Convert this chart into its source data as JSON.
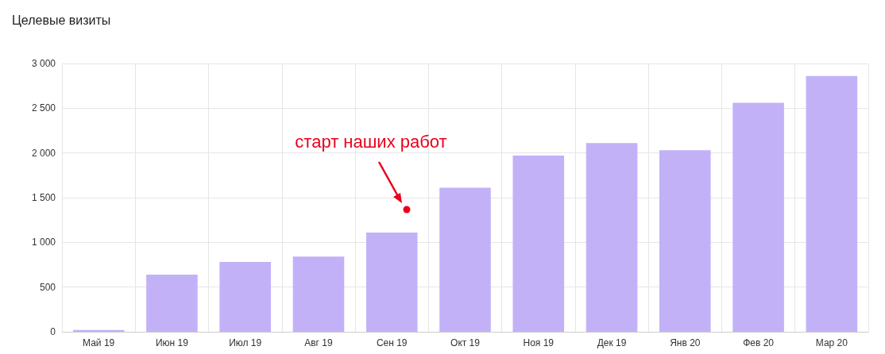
{
  "chart_data": {
    "type": "bar",
    "title": "Целевые визиты",
    "categories": [
      "Май 19",
      "Июн 19",
      "Июл 19",
      "Авг 19",
      "Сен 19",
      "Окт 19",
      "Ноя 19",
      "Дек 19",
      "Янв 20",
      "Фев 20",
      "Мар 20"
    ],
    "values": [
      20,
      640,
      780,
      840,
      1110,
      1610,
      1970,
      2110,
      2030,
      2560,
      2860
    ],
    "color": "#c3b1f8",
    "ylim": [
      0,
      3000
    ],
    "yticks": [
      {
        "value": 0,
        "label": "0"
      },
      {
        "value": 500,
        "label": "500"
      },
      {
        "value": 1000,
        "label": "1 000"
      },
      {
        "value": 1500,
        "label": "1 500"
      },
      {
        "value": 2000,
        "label": "2 000"
      },
      {
        "value": 2500,
        "label": "2 500"
      },
      {
        "value": 3000,
        "label": "3 000"
      }
    ],
    "grid": true,
    "annotations": [
      "старт наших работ"
    ]
  }
}
